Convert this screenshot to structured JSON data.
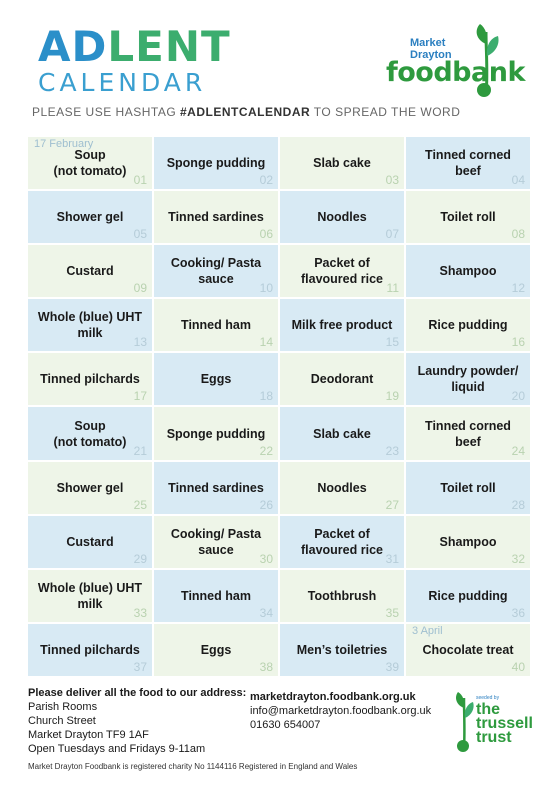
{
  "header": {
    "title_part1": "AD",
    "title_part2": "LENT",
    "title_line2": "CALENDAR",
    "logo_top": "Market Drayton",
    "logo_main": "foodbank",
    "tagline_pre": "PLEASE USE HASHTAG ",
    "tagline_tag": "#ADLENTCALENDAR",
    "tagline_post": " TO SPREAD THE WORD"
  },
  "calendar": [
    {
      "item": "Soup\n(not tomato)",
      "num": "01",
      "date": "17 February"
    },
    {
      "item": "Sponge pudding",
      "num": "02"
    },
    {
      "item": "Slab cake",
      "num": "03"
    },
    {
      "item": "Tinned corned beef",
      "num": "04"
    },
    {
      "item": "Shower gel",
      "num": "05"
    },
    {
      "item": "Tinned sardines",
      "num": "06"
    },
    {
      "item": "Noodles",
      "num": "07"
    },
    {
      "item": "Toilet roll",
      "num": "08"
    },
    {
      "item": "Custard",
      "num": "09"
    },
    {
      "item": "Cooking/ Pasta sauce",
      "num": "10"
    },
    {
      "item": "Packet of flavoured rice",
      "num": "11"
    },
    {
      "item": "Shampoo",
      "num": "12"
    },
    {
      "item": "Whole (blue) UHT milk",
      "num": "13"
    },
    {
      "item": "Tinned ham",
      "num": "14"
    },
    {
      "item": "Milk free product",
      "num": "15"
    },
    {
      "item": "Rice pudding",
      "num": "16"
    },
    {
      "item": "Tinned pilchards",
      "num": "17"
    },
    {
      "item": "Eggs",
      "num": "18"
    },
    {
      "item": "Deodorant",
      "num": "19"
    },
    {
      "item": "Laundry powder/ liquid",
      "num": "20"
    },
    {
      "item": "Soup\n(not tomato)",
      "num": "21"
    },
    {
      "item": "Sponge pudding",
      "num": "22"
    },
    {
      "item": "Slab cake",
      "num": "23"
    },
    {
      "item": "Tinned corned beef",
      "num": "24"
    },
    {
      "item": "Shower gel",
      "num": "25"
    },
    {
      "item": "Tinned sardines",
      "num": "26"
    },
    {
      "item": "Noodles",
      "num": "27"
    },
    {
      "item": "Toilet roll",
      "num": "28"
    },
    {
      "item": "Custard",
      "num": "29"
    },
    {
      "item": "Cooking/ Pasta sauce",
      "num": "30"
    },
    {
      "item": "Packet of flavoured rice",
      "num": "31"
    },
    {
      "item": "Shampoo",
      "num": "32"
    },
    {
      "item": "Whole (blue) UHT milk",
      "num": "33"
    },
    {
      "item": "Tinned ham",
      "num": "34"
    },
    {
      "item": "Toothbrush",
      "num": "35"
    },
    {
      "item": "Rice pudding",
      "num": "36"
    },
    {
      "item": "Tinned pilchards",
      "num": "37"
    },
    {
      "item": "Eggs",
      "num": "38"
    },
    {
      "item": "Men’s toiletries",
      "num": "39"
    },
    {
      "item": "Chocolate treat",
      "num": "40",
      "date": "3 April"
    }
  ],
  "footer": {
    "heading": "Please deliver all the food to our address:",
    "address": [
      "Parish Rooms",
      "Church Street",
      "Market Drayton TF9 1AF",
      "Open Tuesdays and Fridays 9-11am"
    ],
    "website": "marketdrayton.foodbank.org.uk",
    "email": "info@marketdrayton.foodbank.org.uk",
    "phone": "01630 654007",
    "trussell_small": "seeded by",
    "trussell_name": "the trussell trust",
    "charity": "Market Drayton Foodbank is registered charity No 1144116 Registered in England and Wales"
  },
  "colors": {
    "green_cell": "#eef5e8",
    "blue_cell": "#d8eaf4",
    "brand_green": "#2e9a3e",
    "brand_blue": "#2b8fc9"
  }
}
